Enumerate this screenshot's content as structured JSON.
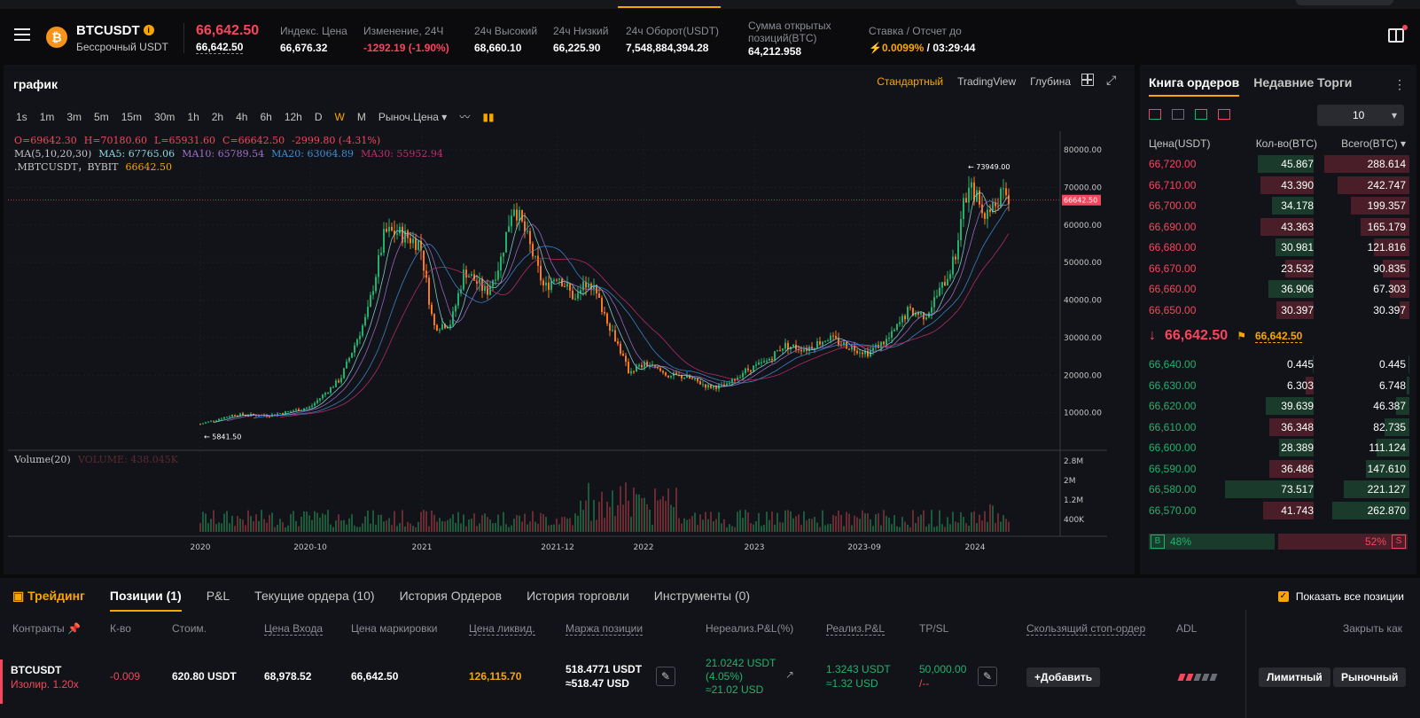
{
  "header": {
    "symbol": "BTCUSDT",
    "symbol_sub": "Бессрочный USDT",
    "last_price": "66,642.50",
    "mark_price": "66,642.50",
    "stats": [
      {
        "label": "Индекс. Цена",
        "value": "66,676.32",
        "color": "#ffffff"
      },
      {
        "label": "Изменение, 24Ч",
        "value": "-1292.19 (-1.90%)",
        "color": "#f6465d"
      },
      {
        "label": "24ч Высокий",
        "value": "68,660.10",
        "color": "#ffffff"
      },
      {
        "label": "24ч Низкий",
        "value": "66,225.90",
        "color": "#ffffff"
      },
      {
        "label": "24ч Оборот(USDT)",
        "value": "7,548,884,394.28",
        "color": "#ffffff"
      }
    ],
    "oi_label_1": "Сумма открытых",
    "oi_label_2": "позиций(BTC)",
    "oi_value": "64,212.958",
    "funding_label": "Ставка / Отсчет до",
    "funding_rate": "0.0099%",
    "funding_countdown": "/ 03:29:44"
  },
  "chart": {
    "title": "график",
    "modes": [
      "Стандартный",
      "TradingView",
      "Глубина"
    ],
    "timeframes": [
      "1s",
      "1m",
      "3m",
      "5m",
      "15m",
      "30m",
      "1h",
      "2h",
      "4h",
      "6h",
      "12h",
      "D",
      "W",
      "M"
    ],
    "price_type": "Рыноч.Цена",
    "ohlc": {
      "o": "O=69642.30",
      "h": "H=70180.60",
      "l": "L=65931.60",
      "c": "C=66642.50",
      "chg": "-2999.80 (-4.31%)"
    },
    "ma": {
      "label": "MA(5,10,20,30)",
      "ma5": "MA5: 67765.06",
      "ma10": "MA10: 65789.54",
      "ma20": "MA20: 63064.89",
      "ma30": "MA30: 55952.94"
    },
    "source": ".MBTCUSDT，BYBIT",
    "source_val": "66642.50",
    "volume_label": "Volume(20)",
    "volume_val": "VOLUME: 438.045K",
    "price_ticks": [
      "80000.00",
      "70000.00",
      "60000.00",
      "50000.00",
      "40000.00",
      "30000.00",
      "20000.00",
      "10000.00"
    ],
    "vol_ticks": [
      "2.8M",
      "2M",
      "1.2M",
      "400K"
    ],
    "x_ticks": [
      "2020",
      "2020-10",
      "2021",
      "2021-12",
      "2022",
      "2023",
      "2023-09",
      "2024"
    ],
    "high_label": "73949.00",
    "low_label": "5841.50",
    "current_label": "66642.50"
  },
  "orderbook": {
    "tabs": [
      "Книга ордеров",
      "Недавние Торги"
    ],
    "depth": "10",
    "headers": [
      "Цена(USDT)",
      "Кол-во(BTC)",
      "Всего(BTC)"
    ],
    "asks": [
      {
        "price": "66,720.00",
        "qty": "45.867",
        "total": "288.614",
        "q": 0.63,
        "t": 1.0
      },
      {
        "price": "66,710.00",
        "qty": "43.390",
        "total": "242.747",
        "q": 0.6,
        "t": 0.84
      },
      {
        "price": "66,700.00",
        "qty": "34.178",
        "total": "199.357",
        "q": 0.47,
        "t": 0.69
      },
      {
        "price": "66,690.00",
        "qty": "43.363",
        "total": "165.179",
        "q": 0.6,
        "t": 0.57
      },
      {
        "price": "66,680.00",
        "qty": "30.981",
        "total": "121.816",
        "q": 0.43,
        "t": 0.42
      },
      {
        "price": "66,670.00",
        "qty": "23.532",
        "total": "90.835",
        "q": 0.32,
        "t": 0.31
      },
      {
        "price": "66,660.00",
        "qty": "36.906",
        "total": "67.303",
        "q": 0.51,
        "t": 0.23
      },
      {
        "price": "66,650.00",
        "qty": "30.397",
        "total": "30.397",
        "q": 0.42,
        "t": 0.11
      }
    ],
    "mid_price": "66,642.50",
    "mid_mark": "66,642.50",
    "bids": [
      {
        "price": "66,640.00",
        "qty": "0.445",
        "total": "0.445",
        "q": 0.01,
        "t": 0.01
      },
      {
        "price": "66,630.00",
        "qty": "6.303",
        "total": "6.748",
        "q": 0.09,
        "t": 0.03
      },
      {
        "price": "66,620.00",
        "qty": "39.639",
        "total": "46.387",
        "q": 0.54,
        "t": 0.16
      },
      {
        "price": "66,610.00",
        "qty": "36.348",
        "total": "82.735",
        "q": 0.5,
        "t": 0.29
      },
      {
        "price": "66,600.00",
        "qty": "28.389",
        "total": "111.124",
        "q": 0.39,
        "t": 0.39
      },
      {
        "price": "66,590.00",
        "qty": "36.486",
        "total": "147.610",
        "q": 0.5,
        "t": 0.51
      },
      {
        "price": "66,580.00",
        "qty": "73.517",
        "total": "221.127",
        "q": 1.0,
        "t": 0.77
      },
      {
        "price": "66,570.00",
        "qty": "41.743",
        "total": "262.870",
        "q": 0.57,
        "t": 0.91
      }
    ],
    "buy_label": "B",
    "buy_pct": "48%",
    "sell_label": "S",
    "sell_pct": "52%"
  },
  "bottom": {
    "tabs": {
      "trading": "Трейдинг",
      "positions": "Позиции (1)",
      "pnl": "P&L",
      "orders": "Текущие ордера (10)",
      "history": "История Ордеров",
      "trades": "История торговли",
      "tools": "Инструменты (0)"
    },
    "show_all": "Показать все позиции",
    "columns": {
      "contract": "Контракты",
      "qty": "К-во",
      "value": "Стоим.",
      "entry": "Цена Входа",
      "mark": "Цена маркировки",
      "liq": "Цена ликвид.",
      "margin": "Маржа позиции",
      "upnl": "Нереализ.P&L(%)",
      "rpnl": "Реализ.P&L",
      "tpsl": "TP/SL",
      "trailing": "Скользящий стоп-ордер",
      "adl": "ADL",
      "close": "Закрыть как"
    },
    "row": {
      "contract": "BTCUSDT",
      "mode": "Изолир. 1.20x",
      "qty": "-0.009",
      "value": "620.80 USDT",
      "entry": "68,978.52",
      "mark": "66,642.50",
      "liq": "126,115.70",
      "margin_1": "518.4771 USDT",
      "margin_2": "≈518.47 USD",
      "upnl_1": "21.0242 USDT",
      "upnl_2": "(4.05%)",
      "upnl_3": "≈21.02 USD",
      "rpnl_1": "1.3243 USDT",
      "rpnl_2": "≈1.32 USD",
      "tp": "50,000.00",
      "sl": "/--",
      "add": "+Добавить",
      "limit": "Лимитный",
      "market": "Рыночный"
    }
  }
}
